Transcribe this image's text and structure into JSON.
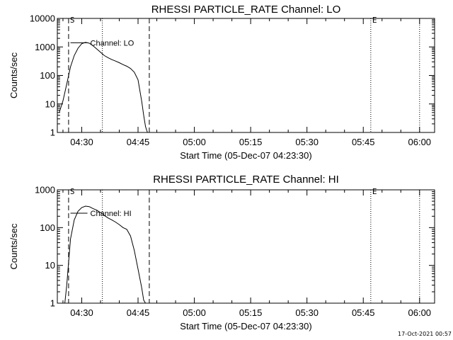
{
  "chart_data": [
    {
      "type": "line",
      "title": "RHESSI PARTICLE_RATE Channel: LO",
      "xlabel": "Start Time (05-Dec-07 04:23:30)",
      "ylabel": "Counts/sec",
      "yscale": "log",
      "ylim": [
        1,
        10000
      ],
      "yticks": [
        1,
        10,
        100,
        1000,
        10000
      ],
      "yticklabels": [
        "1",
        "10",
        "100",
        "1000",
        "10000"
      ],
      "xlim": [
        "04:23:30",
        "06:04:00"
      ],
      "xticks": [
        "04:30",
        "04:45",
        "05:00",
        "05:15",
        "05:30",
        "05:45",
        "06:00"
      ],
      "legend": "Channel: LO",
      "markers": [
        {
          "label": "S",
          "time": "04:26:30",
          "style": "dashed"
        },
        {
          "label": "",
          "time": "04:35:30",
          "style": "dotted"
        },
        {
          "label": "",
          "time": "04:48:00",
          "style": "dashed"
        },
        {
          "label": "E",
          "time": "05:47:00",
          "style": "dotted"
        },
        {
          "label": "",
          "time": "06:00:00",
          "style": "dotted"
        }
      ],
      "series": [
        {
          "x": [
            "04:24:00",
            "04:25:00",
            "04:26:00",
            "04:27:00",
            "04:28:00",
            "04:29:00",
            "04:30:00",
            "04:31:00",
            "04:32:00",
            "04:33:00",
            "04:34:00",
            "04:35:00",
            "04:36:00",
            "04:37:00",
            "04:38:00",
            "04:39:00",
            "04:40:00",
            "04:41:00",
            "04:42:00",
            "04:43:00",
            "04:44:00",
            "04:45:00",
            "04:46:00",
            "04:46:30",
            "04:47:00",
            "04:47:30"
          ],
          "values": [
            5,
            13,
            50,
            200,
            500,
            900,
            1300,
            1450,
            1350,
            1100,
            850,
            650,
            500,
            420,
            360,
            320,
            280,
            240,
            210,
            175,
            130,
            70,
            12,
            4,
            1.6,
            1
          ]
        }
      ]
    },
    {
      "type": "line",
      "title": "RHESSI PARTICLE_RATE Channel: HI",
      "xlabel": "Start Time (05-Dec-07 04:23:30)",
      "ylabel": "Counts/sec",
      "yscale": "log",
      "ylim": [
        1,
        1000
      ],
      "yticks": [
        1,
        10,
        100,
        1000
      ],
      "yticklabels": [
        "1",
        "10",
        "100",
        "1000"
      ],
      "xlim": [
        "04:23:30",
        "06:04:00"
      ],
      "xticks": [
        "04:30",
        "04:45",
        "05:00",
        "05:15",
        "05:30",
        "05:45",
        "06:00"
      ],
      "legend": "Channel: HI",
      "markers": [
        {
          "label": "S",
          "time": "04:26:30",
          "style": "dashed"
        },
        {
          "label": "",
          "time": "04:35:30",
          "style": "dotted"
        },
        {
          "label": "",
          "time": "04:48:00",
          "style": "dashed"
        },
        {
          "label": "E",
          "time": "05:47:00",
          "style": "dotted"
        },
        {
          "label": "",
          "time": "06:00:00",
          "style": "dotted"
        }
      ],
      "series": [
        {
          "x": [
            "04:25:30",
            "04:26:00",
            "04:26:30",
            "04:27:00",
            "04:28:00",
            "04:29:00",
            "04:30:00",
            "04:31:00",
            "04:32:00",
            "04:33:00",
            "04:34:00",
            "04:35:00",
            "04:36:00",
            "04:37:00",
            "04:38:00",
            "04:39:00",
            "04:40:00",
            "04:41:00",
            "04:42:00",
            "04:43:00",
            "04:44:00",
            "04:45:00",
            "04:46:00",
            "04:46:30",
            "04:47:00"
          ],
          "values": [
            1,
            3,
            12,
            50,
            160,
            270,
            340,
            370,
            360,
            320,
            290,
            250,
            210,
            180,
            160,
            140,
            120,
            100,
            90,
            60,
            25,
            8,
            2.5,
            1.2,
            1
          ]
        }
      ]
    }
  ],
  "timestamp": "17-Oct-2021 00:57"
}
